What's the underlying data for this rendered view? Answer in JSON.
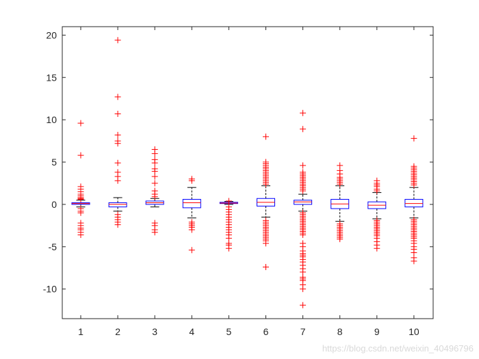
{
  "chart_data": {
    "type": "boxplot",
    "categories": [
      "1",
      "2",
      "3",
      "4",
      "5",
      "6",
      "7",
      "8",
      "9",
      "10"
    ],
    "ylim": [
      -13.5,
      21
    ],
    "yticks": [
      20,
      15,
      10,
      5,
      0,
      -5,
      -10
    ],
    "ytick_labels": [
      "20",
      "15",
      "10",
      "5",
      "0",
      "-5",
      "-10"
    ],
    "grid": false,
    "box_color": "#0000ff",
    "median_color": "#ff0000",
    "whisker_color": "#000000",
    "outlier_color": "#ff0000",
    "boxes": [
      {
        "label": "1",
        "q1": 0.0,
        "median": 0.1,
        "q3": 0.2,
        "whisker_low": -0.3,
        "whisker_high": 0.5,
        "outliers": [
          9.6,
          5.8,
          2.1,
          1.8,
          1.5,
          1.2,
          1.0,
          0.8,
          0.7,
          0.6,
          -0.5,
          -0.8,
          -1.0,
          -2.2,
          -2.5,
          -2.8,
          -3.0,
          -3.3,
          -3.6
        ]
      },
      {
        "label": "2",
        "q1": -0.3,
        "median": 0.0,
        "q3": 0.2,
        "whisker_low": -0.8,
        "whisker_high": 0.8,
        "outliers": [
          19.4,
          12.7,
          10.7,
          8.2,
          7.5,
          7.2,
          4.9,
          3.8,
          3.3,
          2.8,
          -1.2,
          -1.5,
          -1.8,
          -2.1,
          -2.4
        ]
      },
      {
        "label": "3",
        "q1": 0.0,
        "median": 0.2,
        "q3": 0.4,
        "whisker_low": -0.3,
        "whisker_high": 0.7,
        "outliers": [
          6.5,
          6.0,
          5.3,
          4.9,
          4.2,
          3.9,
          3.3,
          2.5,
          1.6,
          1.2,
          0.9,
          -2.2,
          -2.5,
          -3.0,
          -3.3
        ]
      },
      {
        "label": "4",
        "q1": -0.4,
        "median": 0.2,
        "q3": 0.6,
        "whisker_low": -1.6,
        "whisker_high": 2.0,
        "outliers": [
          3.0,
          2.8,
          -2.1,
          -2.3,
          -2.5,
          -2.7,
          -3.0,
          -5.4
        ]
      },
      {
        "label": "5",
        "q1": 0.1,
        "median": 0.15,
        "q3": 0.25,
        "whisker_low": 0.0,
        "whisker_high": 0.35,
        "outliers": [
          0.4,
          -0.3,
          -0.6,
          -0.9,
          -1.2,
          -1.5,
          -1.8,
          -2.1,
          -2.4,
          -2.7,
          -3.0,
          -3.3,
          -3.6,
          -4.0,
          -4.6,
          -4.8,
          -5.2
        ]
      },
      {
        "label": "6",
        "q1": -0.2,
        "median": 0.25,
        "q3": 0.7,
        "whisker_low": -1.5,
        "whisker_high": 2.2,
        "outliers": [
          8.0,
          5.0,
          4.8,
          4.6,
          4.4,
          4.2,
          4.0,
          3.8,
          3.6,
          3.4,
          3.2,
          3.0,
          2.8,
          2.6,
          2.4,
          -1.9,
          -2.1,
          -2.3,
          -2.5,
          -2.7,
          -2.9,
          -3.1,
          -3.3,
          -3.5,
          -3.7,
          -3.9,
          -4.1,
          -4.3,
          -4.6,
          -7.4
        ]
      },
      {
        "label": "7",
        "q1": 0.0,
        "median": 0.3,
        "q3": 0.5,
        "whisker_low": -0.8,
        "whisker_high": 1.2,
        "outliers": [
          10.8,
          8.9,
          4.6,
          3.8,
          3.6,
          3.4,
          3.2,
          3.0,
          2.8,
          2.6,
          2.4,
          2.2,
          2.0,
          1.8,
          1.6,
          -1.0,
          -1.2,
          -1.4,
          -1.6,
          -1.8,
          -2.0,
          -2.2,
          -2.4,
          -2.6,
          -2.8,
          -3.0,
          -3.2,
          -3.4,
          -3.6,
          -4.6,
          -5.0,
          -5.5,
          -5.8,
          -6.0,
          -6.2,
          -6.5,
          -6.8,
          -7.2,
          -7.6,
          -8.0,
          -8.6,
          -8.8,
          -9.0,
          -9.5,
          -10.0,
          -11.9
        ]
      },
      {
        "label": "8",
        "q1": -0.5,
        "median": 0.05,
        "q3": 0.6,
        "whisker_low": -2.0,
        "whisker_high": 2.2,
        "outliers": [
          4.6,
          4.0,
          3.6,
          3.2,
          3.0,
          2.8,
          2.6,
          2.4,
          -2.3,
          -2.5,
          -2.7,
          -2.9,
          -3.1,
          -3.3,
          -3.5,
          -3.7,
          -3.9,
          -4.1
        ]
      },
      {
        "label": "9",
        "q1": -0.5,
        "median": -0.1,
        "q3": 0.3,
        "whisker_low": -1.7,
        "whisker_high": 1.4,
        "outliers": [
          2.8,
          2.5,
          2.3,
          2.1,
          1.8,
          1.6,
          -1.9,
          -2.1,
          -2.3,
          -2.5,
          -2.7,
          -2.9,
          -3.1,
          -3.3,
          -3.5,
          -3.7,
          -4.0,
          -4.4,
          -4.8,
          -5.2
        ]
      },
      {
        "label": "10",
        "q1": -0.3,
        "median": 0.1,
        "q3": 0.6,
        "whisker_low": -1.6,
        "whisker_high": 2.0,
        "outliers": [
          7.8,
          4.5,
          4.3,
          4.1,
          3.9,
          3.7,
          3.5,
          3.3,
          3.1,
          2.9,
          2.7,
          2.5,
          2.3,
          -1.8,
          -2.0,
          -2.2,
          -2.4,
          -2.6,
          -2.8,
          -3.0,
          -3.2,
          -3.4,
          -3.6,
          -3.8,
          -4.0,
          -4.3,
          -4.6,
          -5.0,
          -5.3,
          -5.7,
          -6.3,
          -6.7
        ]
      }
    ]
  },
  "watermark": "https://blog.csdn.net/weixin_40496796"
}
